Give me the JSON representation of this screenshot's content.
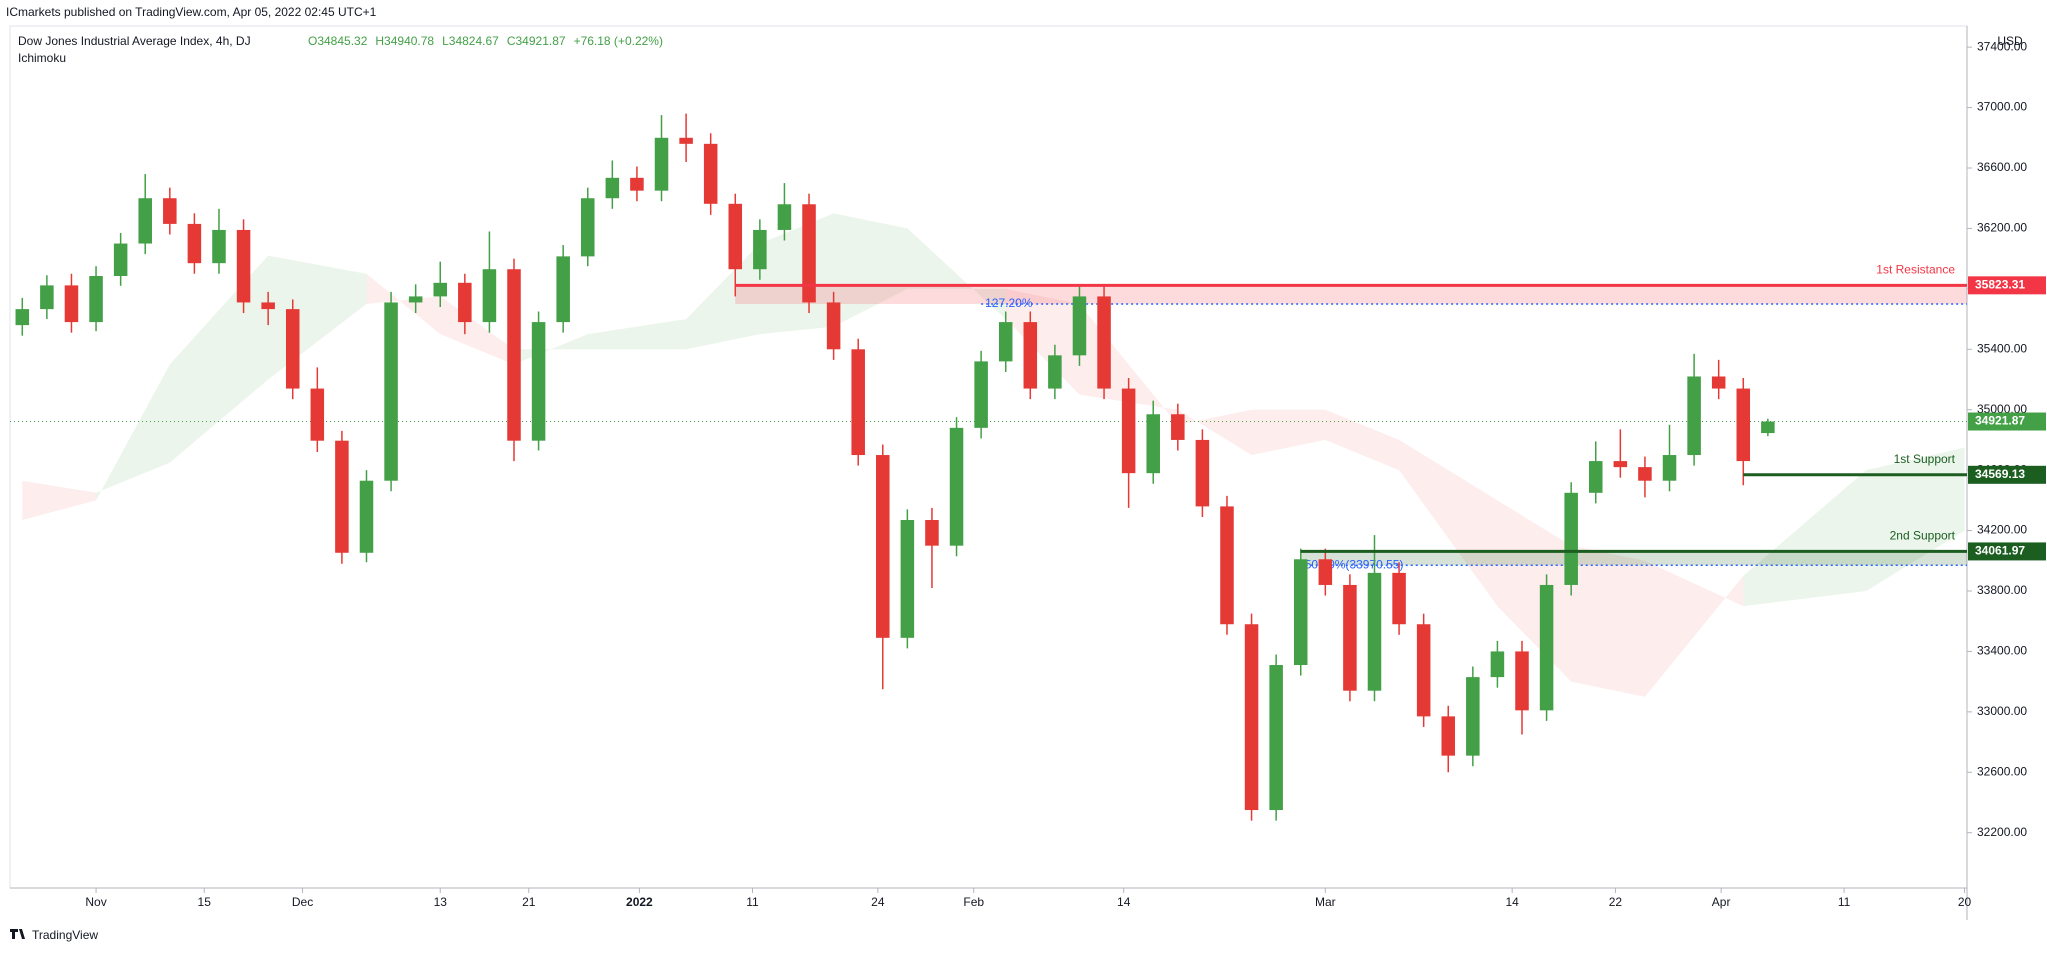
{
  "chart_data": {
    "type": "candlestick",
    "published": "ICmarkets published on TradingView.com, Apr 05, 2022 02:45 UTC+1",
    "title": "Dow Jones Industrial Average Index, 4h, DJ",
    "ohlc_labels": [
      "O34845.32",
      "H34940.78",
      "L34824.67",
      "C34921.87",
      "+76.18 (+0.22%)"
    ],
    "indicator": "Ichimoku",
    "currency": "USD",
    "brand": "TradingView",
    "up_color": "#43a047",
    "down_color": "#e53935",
    "open": [
      35560,
      35666,
      35823,
      35580,
      35885,
      36100,
      36400,
      36230,
      35970,
      36190,
      35710,
      35666,
      35140,
      34795,
      34053,
      34530,
      35710,
      35750,
      35840,
      35580,
      35930,
      34795,
      35580,
      36015,
      36400,
      36535,
      36450,
      36800,
      36760,
      36363,
      35930,
      36190,
      36360,
      35710,
      35400,
      34700,
      33490,
      34270,
      34100,
      34880,
      35320,
      35580,
      35140,
      35360,
      35750,
      35140,
      34580,
      34970,
      34800,
      34360,
      33580,
      32350,
      33310,
      34010,
      33840,
      33140,
      33920,
      33580,
      32970,
      32710,
      33230,
      33400,
      33010,
      33840,
      34450,
      34660,
      34620,
      34530,
      34700,
      35220,
      35140,
      34845.32
    ],
    "high": [
      35740,
      35890,
      35900,
      35950,
      36170,
      36560,
      36470,
      36300,
      36330,
      36260,
      35780,
      35730,
      35280,
      34860,
      34600,
      35780,
      35830,
      35980,
      35900,
      36180,
      36000,
      35650,
      36090,
      36470,
      36650,
      36610,
      36950,
      36960,
      36830,
      36430,
      36260,
      36500,
      36430,
      35780,
      35470,
      34770,
      34340,
      34350,
      34950,
      35390,
      35650,
      35650,
      35430,
      35830,
      35820,
      35210,
      35060,
      35040,
      34870,
      34430,
      33650,
      33380,
      34080,
      34080,
      33910,
      34170,
      33990,
      33650,
      33040,
      33300,
      33470,
      33470,
      33910,
      34520,
      34790,
      34870,
      34690,
      34900,
      35370,
      35330,
      35210,
      34940.78
    ],
    "low": [
      35490,
      35600,
      35510,
      35520,
      35820,
      36030,
      36160,
      35900,
      35900,
      35640,
      35560,
      35070,
      34720,
      33980,
      33990,
      34460,
      35640,
      35680,
      35500,
      35510,
      34660,
      34730,
      35510,
      35950,
      36330,
      36380,
      36380,
      36640,
      36290,
      35750,
      35860,
      36120,
      35640,
      35330,
      34630,
      33150,
      33420,
      33820,
      34030,
      34810,
      35250,
      35070,
      35070,
      35290,
      35070,
      34350,
      34510,
      34730,
      34290,
      33510,
      32280,
      32280,
      33240,
      33770,
      33070,
      33070,
      33510,
      32900,
      32600,
      32640,
      33160,
      32850,
      32940,
      33770,
      34380,
      34550,
      34420,
      34460,
      34630,
      35070,
      34500,
      34824.67
    ],
    "close": [
      35666,
      35823,
      35580,
      35885,
      36100,
      36400,
      36230,
      35970,
      36190,
      35710,
      35666,
      35140,
      34795,
      34053,
      34530,
      35710,
      35750,
      35840,
      35580,
      35930,
      34795,
      35580,
      36015,
      36400,
      36535,
      36450,
      36800,
      36760,
      36363,
      35930,
      36190,
      36360,
      35710,
      35400,
      34700,
      33490,
      34270,
      34100,
      34880,
      35320,
      35580,
      35140,
      35360,
      35750,
      35140,
      34580,
      34970,
      34800,
      34360,
      33580,
      32350,
      33310,
      34010,
      33840,
      33140,
      33920,
      33580,
      32970,
      32710,
      33230,
      33400,
      33010,
      33840,
      34450,
      34660,
      34620,
      34530,
      34700,
      35220,
      35140,
      34660,
      34921.87
    ],
    "cloud": {
      "x": [
        0,
        3,
        6,
        10,
        14,
        17,
        20,
        23,
        27,
        30,
        33,
        36,
        40,
        43,
        47,
        50,
        53,
        56,
        60,
        63,
        66,
        70,
        75,
        79
      ],
      "span_a": [
        34270,
        34400,
        35300,
        36020,
        35900,
        35500,
        35300,
        35500,
        35600,
        36100,
        36300,
        36200,
        35600,
        35100,
        35000,
        34700,
        34800,
        34600,
        33700,
        33200,
        33100,
        33900,
        34600,
        34750
      ],
      "span_b": [
        34530,
        34450,
        34650,
        35200,
        35700,
        35750,
        35400,
        35400,
        35400,
        35500,
        35550,
        35800,
        35800,
        35700,
        34900,
        35000,
        35000,
        34800,
        34400,
        34100,
        34000,
        33700,
        33800,
        34200
      ],
      "up_color": "#43a047",
      "down_color": "#ef5350"
    },
    "levels": [
      {
        "name": "1st Resistance",
        "value": 35823.31,
        "zone": 35700,
        "start": 29,
        "color": "#f23645"
      },
      {
        "name": "1st Support",
        "value": 34569.13,
        "start": 70,
        "color": "#1b5e20"
      },
      {
        "name": "2nd Support",
        "value": 34061.97,
        "zone": 33970,
        "start": 52,
        "color": "#1b5e20"
      }
    ],
    "fib": [
      {
        "label": "127.20%",
        "value": 35700,
        "start": 39
      },
      {
        "label": "50.00%(33970.55)",
        "value": 33970.55,
        "start": 52
      }
    ],
    "xlim": [
      -0.5,
      79.1
    ],
    "xticks": [
      {
        "value": 3,
        "label": "Nov"
      },
      {
        "value": 7.4,
        "label": "15"
      },
      {
        "value": 11.4,
        "label": "Dec"
      },
      {
        "value": 17,
        "label": "13"
      },
      {
        "value": 20.6,
        "label": "21"
      },
      {
        "value": 25.1,
        "label": "2022"
      },
      {
        "value": 29.7,
        "label": "11"
      },
      {
        "value": 34.8,
        "label": "24"
      },
      {
        "value": 38.7,
        "label": "Feb"
      },
      {
        "value": 44.8,
        "label": "14"
      },
      {
        "value": 53,
        "label": "Mar"
      },
      {
        "value": 60.6,
        "label": "14"
      },
      {
        "value": 64.8,
        "label": "22"
      },
      {
        "value": 69.1,
        "label": "Apr"
      },
      {
        "value": 74.1,
        "label": "11"
      },
      {
        "value": 79,
        "label": "20"
      }
    ],
    "ylim": [
      31834,
      37540
    ],
    "yticks": [
      {
        "value": 32200,
        "label": "32200.00"
      },
      {
        "value": 32600,
        "label": "32600.00"
      },
      {
        "value": 33000,
        "label": "33000.00"
      },
      {
        "value": 33400,
        "label": "33400.00"
      },
      {
        "value": 33800,
        "label": "33800.00"
      },
      {
        "value": 34200,
        "label": "34200.00"
      },
      {
        "value": 34600,
        "label": "34600.00"
      },
      {
        "value": 35000,
        "label": "35000.00"
      },
      {
        "value": 35400,
        "label": "35400.00"
      },
      {
        "value": 35800,
        "label": "35800.00"
      },
      {
        "value": 36200,
        "label": "36200.00"
      },
      {
        "value": 36600,
        "label": "36600.00"
      },
      {
        "value": 37000,
        "label": "37000.00"
      },
      {
        "value": 37400,
        "label": "37400.00"
      }
    ]
  }
}
